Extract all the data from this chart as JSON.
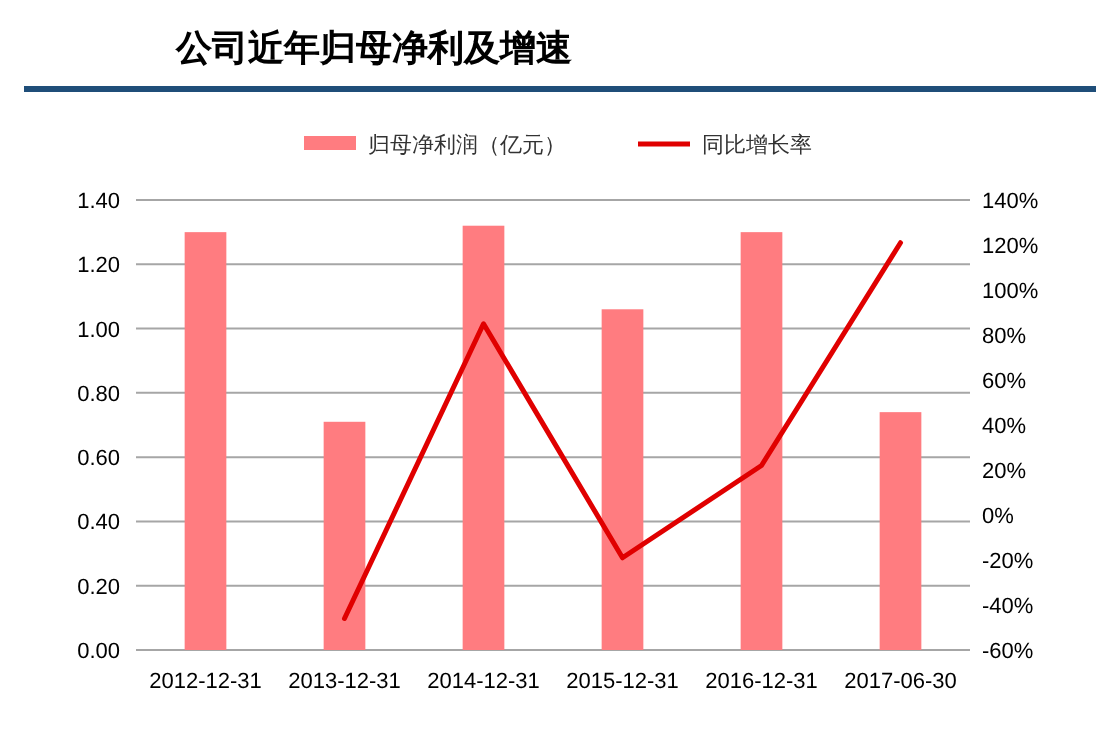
{
  "chart_data": {
    "type": "bar",
    "title": "公司近年归母净利及增速",
    "categories": [
      "2012-12-31",
      "2013-12-31",
      "2014-12-31",
      "2015-12-31",
      "2016-12-31",
      "2017-06-30"
    ],
    "series": [
      {
        "name": "归母净利润（亿元）",
        "color": "#ff7c80",
        "values": [
          1.3,
          0.71,
          1.32,
          1.06,
          1.3,
          0.74
        ]
      },
      {
        "name": "同比增长率",
        "type": "line",
        "axis": "y2",
        "color": "#e00000",
        "values": [
          null,
          -46,
          85,
          -19,
          22,
          121
        ]
      }
    ],
    "ylim": [
      0,
      1.4
    ],
    "yticks": [
      {
        "value": 0,
        "label": "0.00"
      },
      {
        "value": 0.2,
        "label": "0.20"
      },
      {
        "value": 0.4,
        "label": "0.40"
      },
      {
        "value": 0.6,
        "label": "0.60"
      },
      {
        "value": 0.8,
        "label": "0.80"
      },
      {
        "value": 1.0,
        "label": "1.00"
      },
      {
        "value": 1.2,
        "label": "1.20"
      },
      {
        "value": 1.4,
        "label": "1.40"
      }
    ],
    "y2lim": [
      -60,
      140
    ],
    "y2ticks": [
      {
        "value": -60,
        "label": "-60%"
      },
      {
        "value": -40,
        "label": "-40%"
      },
      {
        "value": -20,
        "label": "-20%"
      },
      {
        "value": 0,
        "label": "0%"
      },
      {
        "value": 20,
        "label": "20%"
      },
      {
        "value": 40,
        "label": "40%"
      },
      {
        "value": 60,
        "label": "60%"
      },
      {
        "value": 80,
        "label": "80%"
      },
      {
        "value": 100,
        "label": "100%"
      },
      {
        "value": 120,
        "label": "120%"
      },
      {
        "value": 140,
        "label": "140%"
      }
    ],
    "grid": "y",
    "legend": "top"
  }
}
